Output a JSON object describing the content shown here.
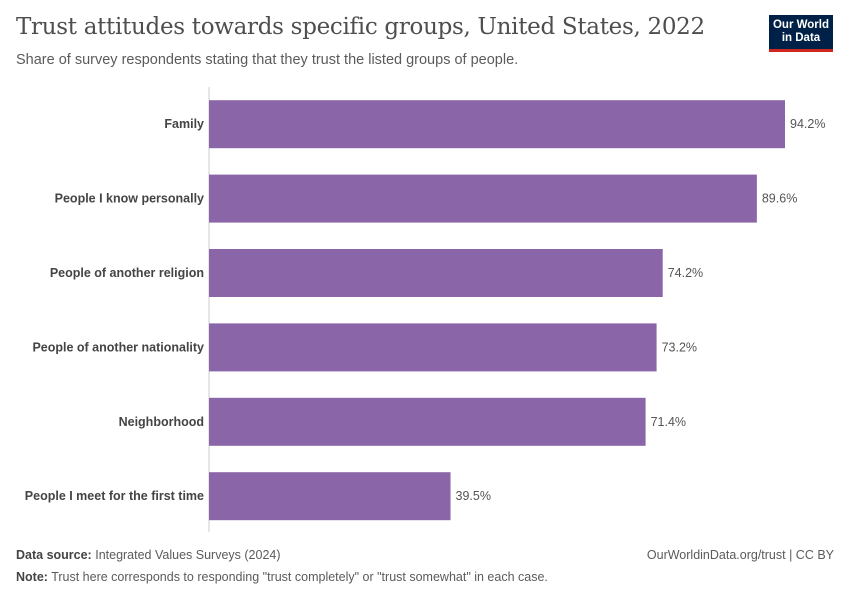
{
  "title": "Trust attitudes towards specific groups, United States, 2022",
  "subtitle": "Share of survey respondents stating that they trust the listed groups of people.",
  "logo": {
    "line1": "Our World",
    "line2": "in Data"
  },
  "footer": {
    "source_label": "Data source:",
    "source": "Integrated Values Surveys (2024)",
    "url": "OurWorldinData.org/trust | CC BY",
    "note_label": "Note:",
    "note": "Trust here corresponds to responding \"trust completely\" or \"trust somewhat\" in each case."
  },
  "chart_data": {
    "type": "bar",
    "orientation": "horizontal",
    "categories": [
      "Family",
      "People I know personally",
      "People of another religion",
      "People of another nationality",
      "Neighborhood",
      "People I meet for the first time"
    ],
    "values": [
      94.2,
      89.6,
      74.2,
      73.2,
      71.4,
      39.5
    ],
    "unit": "%",
    "color": "#8a66a8",
    "xlim": [
      0,
      100
    ],
    "grid": false
  }
}
